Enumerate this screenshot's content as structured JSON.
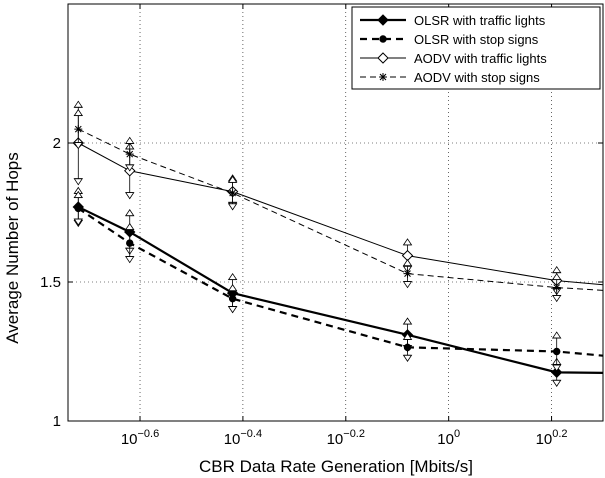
{
  "chart_data": {
    "type": "line",
    "xlabel": "CBR Data Rate Generation [Mbits/s]",
    "ylabel": "Average Number of Hops",
    "x_scale": "log10",
    "xlim": [
      -0.74,
      0.3
    ],
    "ylim": [
      1,
      2.5
    ],
    "x_ticks": [
      {
        "value": -0.6,
        "base": "10",
        "exp": "−0.6"
      },
      {
        "value": -0.4,
        "base": "10",
        "exp": "−0.4"
      },
      {
        "value": -0.2,
        "base": "10",
        "exp": "−0.2"
      },
      {
        "value": 0,
        "base": "10",
        "exp": "0"
      },
      {
        "value": 0.2,
        "base": "10",
        "exp": "0.2"
      }
    ],
    "y_ticks": [
      {
        "value": 1,
        "label": "1"
      },
      {
        "value": 1.5,
        "label": "1.5"
      },
      {
        "value": 2,
        "label": "2"
      }
    ],
    "grid": true,
    "legend_position": "top-right",
    "series": [
      {
        "name": "OLSR with traffic lights",
        "line": "solid-thick",
        "marker": "diamond-filled",
        "points": [
          {
            "x": -0.72,
            "y": 1.77,
            "err": 0.07
          },
          {
            "x": -0.62,
            "y": 1.68,
            "err": 0.08
          },
          {
            "x": -0.42,
            "y": 1.46,
            "err": 0.07
          },
          {
            "x": -0.08,
            "y": 1.31,
            "err": 0.06
          },
          {
            "x": 0.21,
            "y": 1.175,
            "err": 0.05
          },
          {
            "x": 0.3,
            "y": 1.173
          }
        ]
      },
      {
        "name": "OLSR with stop signs",
        "line": "dashed-thick",
        "marker": "dot-filled",
        "points": [
          {
            "x": -0.72,
            "y": 1.765,
            "err": 0.06
          },
          {
            "x": -0.62,
            "y": 1.64,
            "err": 0.07
          },
          {
            "x": -0.42,
            "y": 1.44,
            "err": 0.05
          },
          {
            "x": -0.08,
            "y": 1.265,
            "err": 0.05
          },
          {
            "x": 0.21,
            "y": 1.25,
            "err": 0.07
          },
          {
            "x": 0.3,
            "y": 1.235
          }
        ]
      },
      {
        "name": "AODV with traffic lights",
        "line": "solid-thin",
        "marker": "diamond-open",
        "points": [
          {
            "x": -0.72,
            "y": 2.0,
            "err": 0.15
          },
          {
            "x": -0.62,
            "y": 1.9,
            "err": 0.1
          },
          {
            "x": -0.42,
            "y": 1.825,
            "err": 0.06
          },
          {
            "x": -0.08,
            "y": 1.595,
            "err": 0.06
          },
          {
            "x": 0.21,
            "y": 1.505,
            "err": 0.05
          },
          {
            "x": 0.3,
            "y": 1.49
          }
        ]
      },
      {
        "name": "AODV with stop signs",
        "line": "dashed-thin",
        "marker": "star",
        "points": [
          {
            "x": -0.72,
            "y": 2.05,
            "err": 0.07
          },
          {
            "x": -0.62,
            "y": 1.96,
            "err": 0.06
          },
          {
            "x": -0.42,
            "y": 1.82,
            "err": 0.06
          },
          {
            "x": -0.08,
            "y": 1.53,
            "err": 0.05
          },
          {
            "x": 0.21,
            "y": 1.48,
            "err": 0.05
          },
          {
            "x": 0.3,
            "y": 1.47
          }
        ]
      }
    ]
  }
}
